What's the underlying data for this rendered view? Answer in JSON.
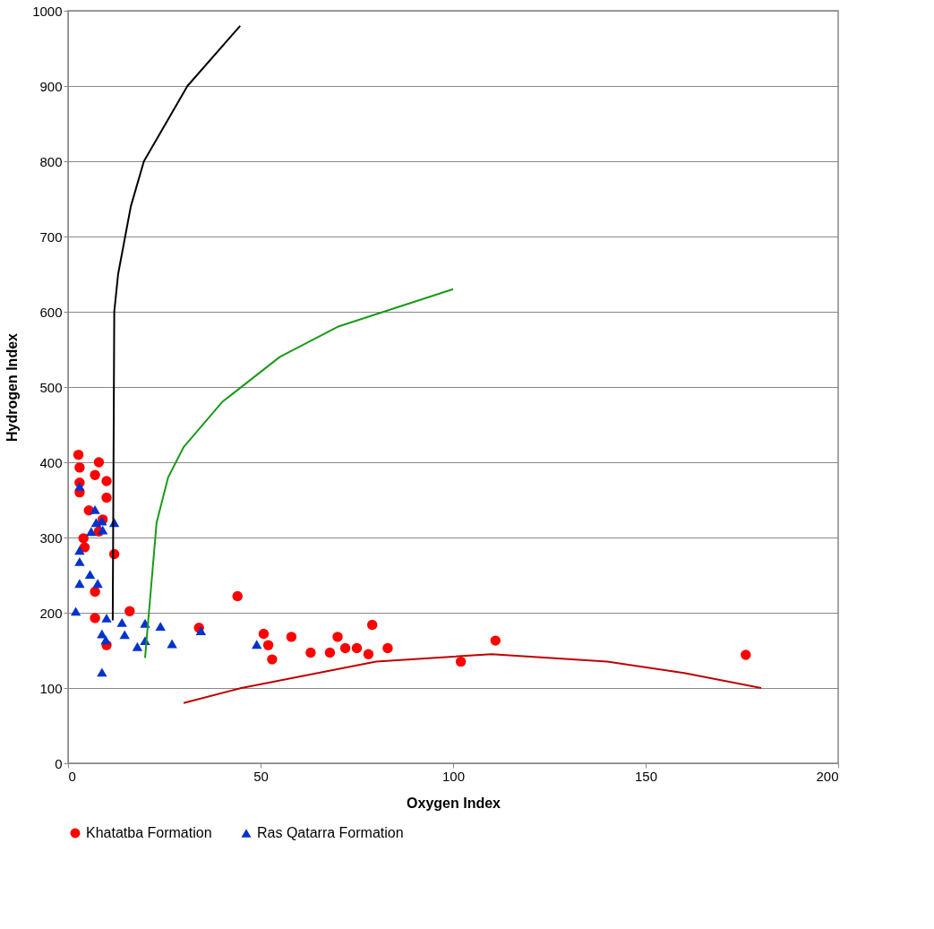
{
  "chart_data": {
    "type": "scatter",
    "xlabel": "Oxygen Index",
    "ylabel": "Hydrogen Index",
    "xlim": [
      0,
      200
    ],
    "ylim": [
      0,
      1000
    ],
    "xticks": [
      0,
      50,
      100,
      150,
      200
    ],
    "yticks": [
      0,
      100,
      200,
      300,
      400,
      500,
      600,
      700,
      800,
      900,
      1000
    ],
    "grid": "y",
    "legend": "bottom",
    "series": [
      {
        "name": "Khatatba Formation",
        "color": "#ff0000",
        "marker": "circle",
        "x": [
          2.7,
          3,
          8,
          7,
          3,
          3,
          10,
          10,
          5.4,
          9,
          8,
          4,
          4.3,
          12,
          7,
          7,
          16,
          10,
          44,
          34,
          50.8,
          52,
          53,
          58,
          63,
          68,
          70,
          72,
          75,
          78,
          79,
          83,
          102,
          111,
          176
        ],
        "values": [
          410,
          393,
          400,
          383,
          373,
          360,
          375,
          353,
          336,
          324,
          308,
          299,
          287,
          278,
          228,
          193,
          202,
          157,
          222,
          180,
          172,
          157,
          138,
          168,
          147,
          147,
          168,
          153,
          153,
          145,
          184,
          153,
          135,
          163,
          144
        ]
      },
      {
        "name": "Ras Qatarra Formation",
        "color": "#0033cc",
        "marker": "triangle",
        "x": [
          3,
          7,
          7.3,
          8.8,
          12,
          6,
          9,
          3,
          3,
          5.7,
          3,
          7.7,
          2,
          10,
          14,
          20,
          24,
          8.8,
          14.7,
          9.8,
          20,
          18,
          27,
          8.8,
          34.5,
          49
        ],
        "values": [
          368,
          337,
          320,
          322,
          320,
          308,
          310,
          283,
          268,
          251,
          239,
          239,
          202,
          193,
          187,
          186,
          182,
          172,
          171,
          164,
          163,
          155,
          159,
          121,
          176,
          158
        ]
      },
      {
        "type": "line",
        "color": "#000000",
        "marker": "none",
        "x": [
          11.6,
          12,
          13,
          16.3,
          19.7,
          31,
          44.7
        ],
        "values": [
          190,
          600,
          650,
          740,
          800,
          900,
          980
        ]
      },
      {
        "type": "line",
        "color": "#1a9a1a",
        "marker": "none",
        "x": [
          20,
          21,
          23,
          26,
          30,
          40,
          55,
          70,
          85,
          100
        ],
        "values": [
          140,
          200,
          320,
          380,
          420,
          480,
          540,
          580,
          605,
          630
        ]
      },
      {
        "type": "line",
        "color": "#c00000",
        "marker": "none",
        "x": [
          30,
          45,
          80,
          110,
          140,
          160,
          180
        ],
        "values": [
          80,
          100,
          135,
          145,
          135,
          120,
          100
        ]
      }
    ]
  }
}
